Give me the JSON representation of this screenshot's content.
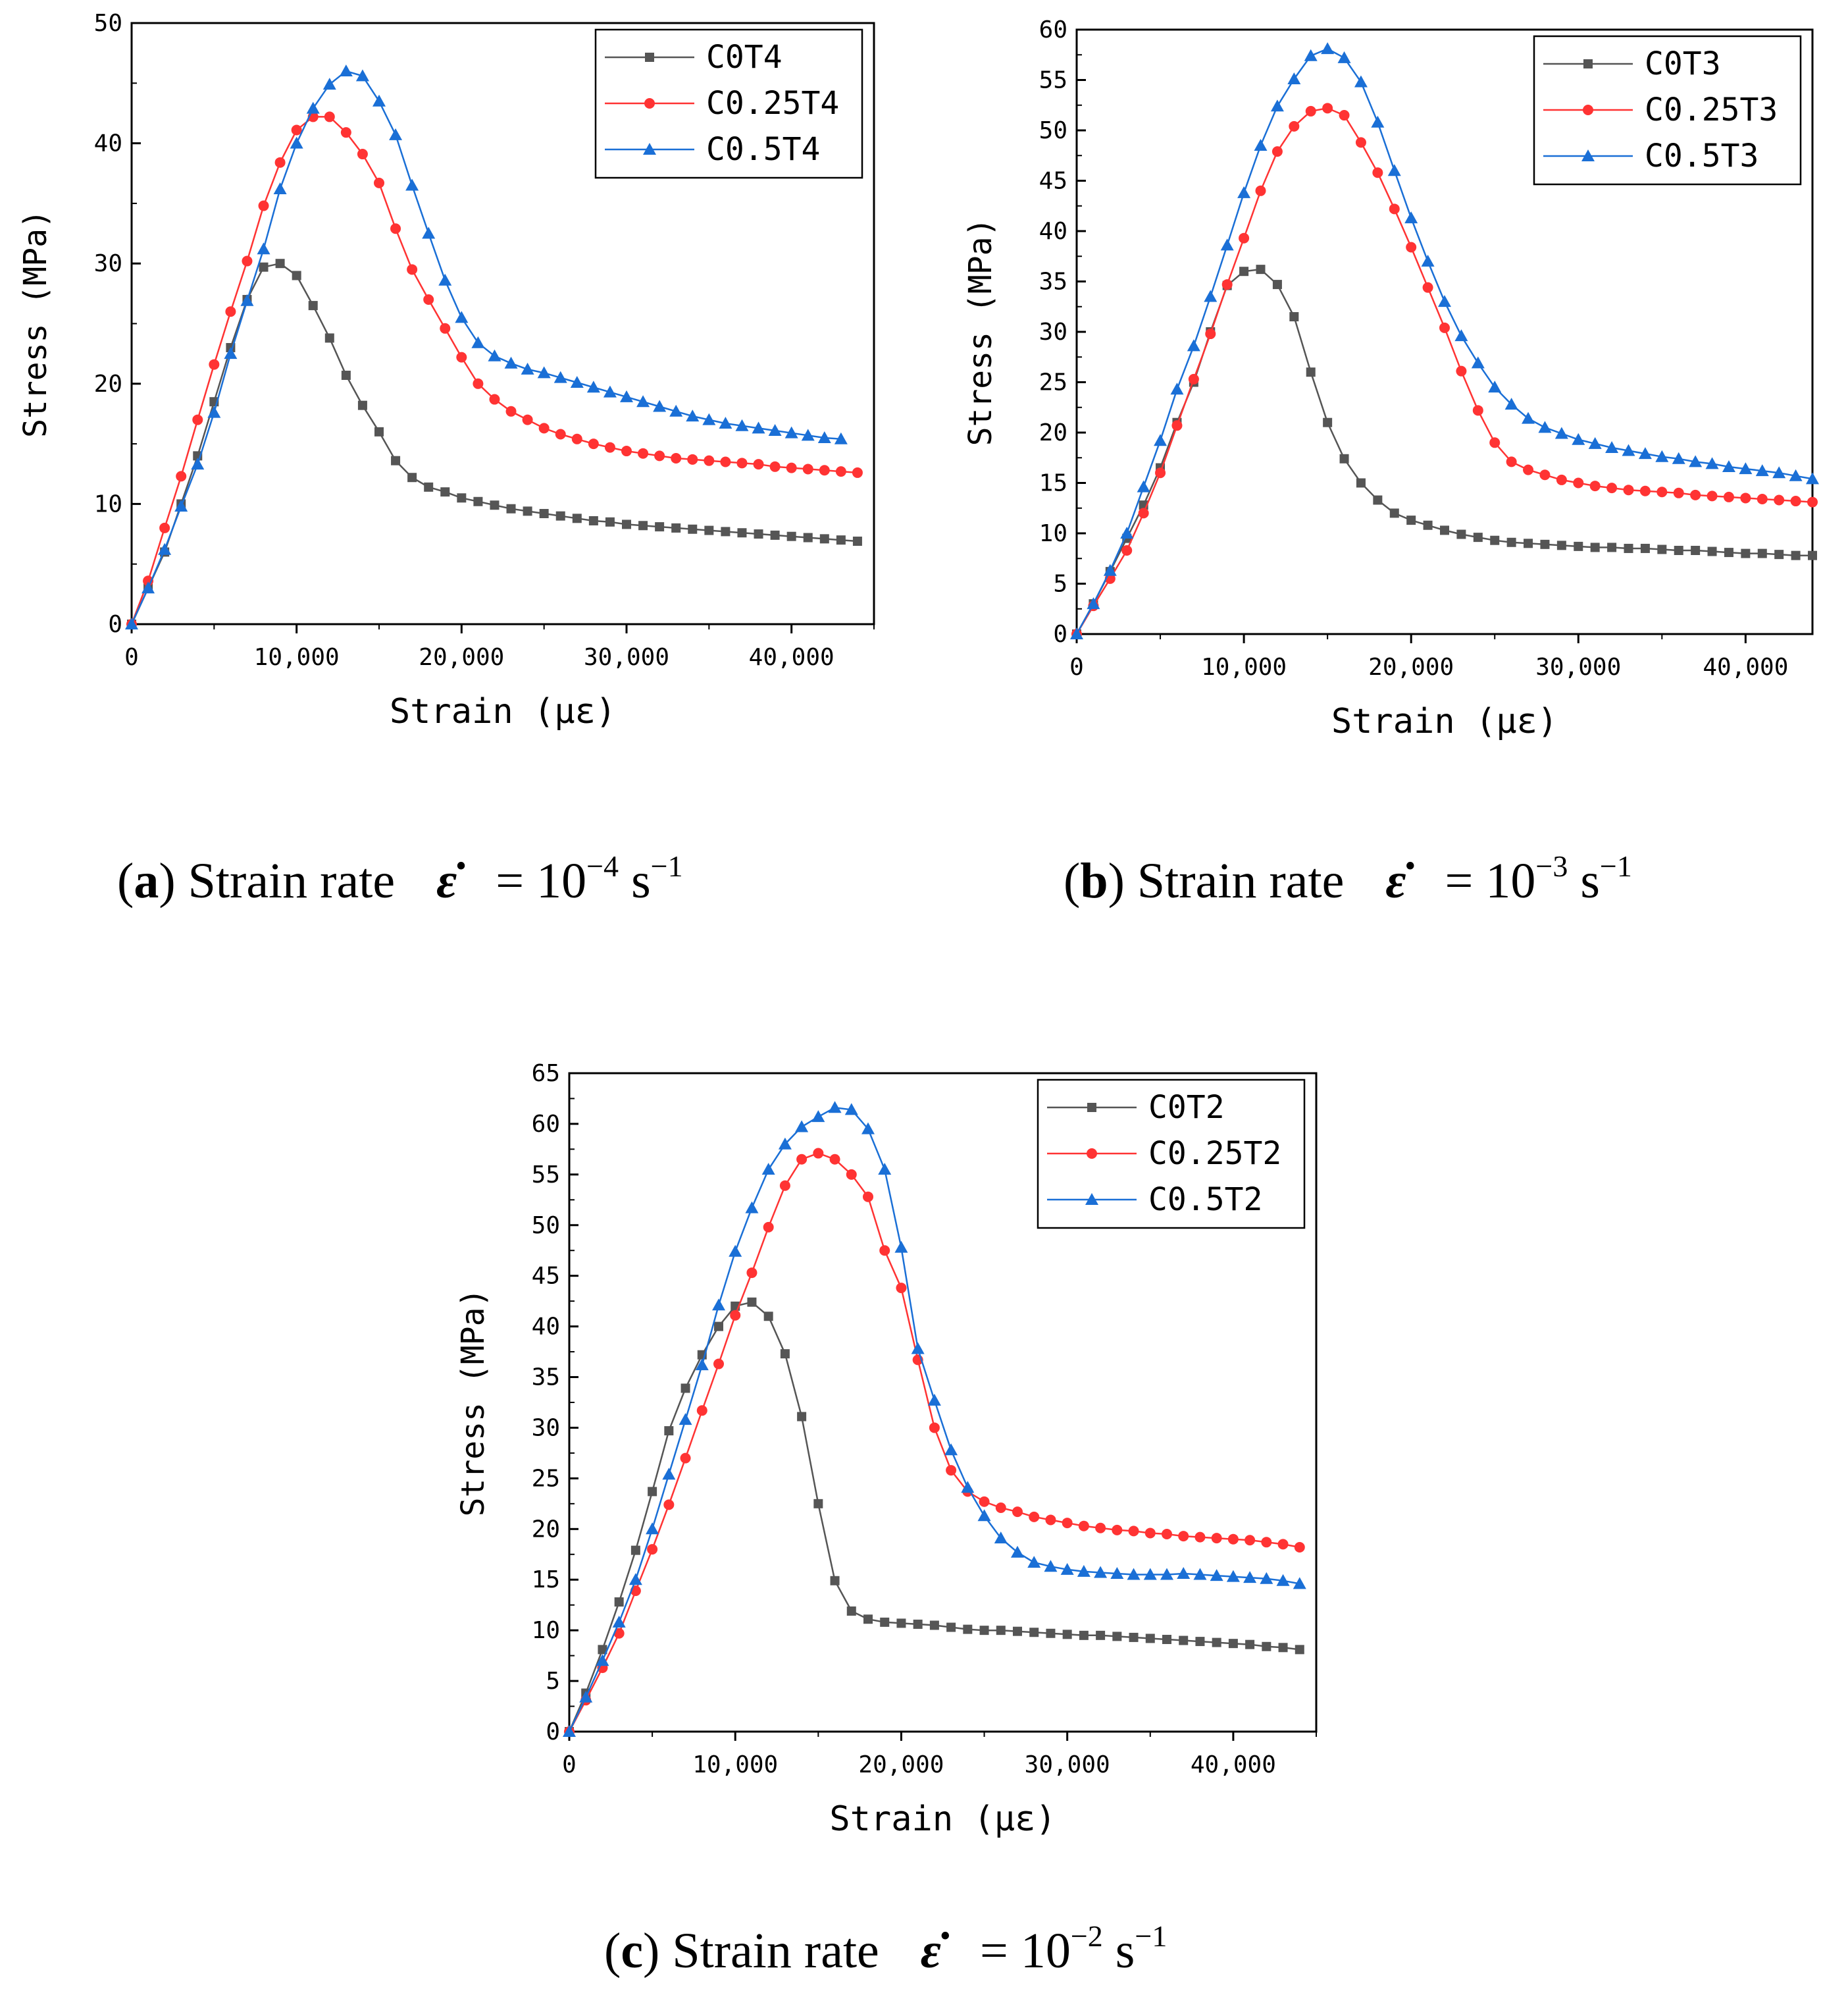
{
  "chart_data": [
    {
      "type": "line",
      "panel_label": "a",
      "caption": {
        "label": "a",
        "text": "Strain rate",
        "symbol": "ε̇",
        "eq": "= 10",
        "exp1": "−4",
        "unit": " s",
        "exp2": "−1"
      },
      "xlabel": "Strain (με)",
      "ylabel": "Stress (MPa)",
      "xlim": [
        0,
        45000
      ],
      "ylim": [
        0,
        50
      ],
      "xticks": [
        0,
        10000,
        20000,
        30000,
        40000
      ],
      "xtick_labels": [
        "0",
        "10,000",
        "20,000",
        "30,000",
        "40,000"
      ],
      "yticks": [
        0,
        10,
        20,
        30,
        40,
        50
      ],
      "ytick_labels": [
        "0",
        "10",
        "20",
        "30",
        "40",
        "50"
      ],
      "legend_position": "top-right",
      "series": [
        {
          "name": "C0T4",
          "color": "#555555",
          "marker": "square",
          "x": [
            0,
            1000,
            2000,
            3000,
            4000,
            5000,
            6000,
            7000,
            8000,
            9000,
            10000,
            11000,
            12000,
            13000,
            14000,
            15000,
            16000,
            17000,
            18000,
            19000,
            20000,
            21000,
            22000,
            23000,
            24000,
            25000,
            26000,
            27000,
            28000,
            29000,
            30000,
            31000,
            32000,
            33000,
            34000,
            35000,
            36000,
            37000,
            38000,
            39000,
            40000,
            41000,
            42000,
            43000,
            44000
          ],
          "y": [
            0,
            3.0,
            6.0,
            10.0,
            14.0,
            18.5,
            23,
            27,
            29.7,
            30.0,
            29.0,
            26.5,
            23.8,
            20.7,
            18.2,
            16.0,
            13.6,
            12.2,
            11.4,
            11.0,
            10.5,
            10.2,
            9.9,
            9.6,
            9.4,
            9.2,
            9.0,
            8.8,
            8.6,
            8.5,
            8.3,
            8.2,
            8.1,
            8.0,
            7.9,
            7.8,
            7.7,
            7.6,
            7.5,
            7.4,
            7.3,
            7.2,
            7.1,
            7.0,
            6.9
          ]
        },
        {
          "name": "C0.25T4",
          "color": "#ff3333",
          "marker": "circle",
          "x": [
            0,
            1000,
            2000,
            3000,
            4000,
            5000,
            6000,
            7000,
            8000,
            9000,
            10000,
            11000,
            12000,
            13000,
            14000,
            15000,
            16000,
            17000,
            18000,
            19000,
            20000,
            21000,
            22000,
            23000,
            24000,
            25000,
            26000,
            27000,
            28000,
            29000,
            30000,
            31000,
            32000,
            33000,
            34000,
            35000,
            36000,
            37000,
            38000,
            39000,
            40000,
            41000,
            42000,
            43000,
            44000
          ],
          "y": [
            0,
            3.6,
            8.0,
            12.3,
            17.0,
            21.6,
            26.0,
            30.2,
            34.8,
            38.4,
            41.1,
            42.2,
            42.2,
            40.9,
            39.1,
            36.7,
            32.9,
            29.5,
            27.0,
            24.6,
            22.2,
            20.0,
            18.7,
            17.7,
            17.0,
            16.3,
            15.8,
            15.4,
            15.0,
            14.7,
            14.4,
            14.2,
            14.0,
            13.8,
            13.7,
            13.6,
            13.5,
            13.4,
            13.3,
            13.1,
            13.0,
            12.9,
            12.8,
            12.7,
            12.6
          ]
        },
        {
          "name": "C0.5T4",
          "color": "#1a6fd6",
          "marker": "triangle",
          "x": [
            0,
            1000,
            2000,
            3000,
            4000,
            5000,
            6000,
            7000,
            8000,
            9000,
            10000,
            11000,
            12000,
            13000,
            14000,
            15000,
            16000,
            17000,
            18000,
            19000,
            20000,
            21000,
            22000,
            23000,
            24000,
            25000,
            26000,
            27000,
            28000,
            29000,
            30000,
            31000,
            32000,
            33000,
            34000,
            35000,
            36000,
            37000,
            38000,
            39000,
            40000,
            41000,
            42000,
            43000
          ],
          "y": [
            0,
            3.0,
            6.2,
            9.8,
            13.3,
            17.6,
            22.5,
            26.9,
            31.2,
            36.2,
            40.0,
            42.9,
            44.9,
            46.0,
            45.6,
            43.5,
            40.7,
            36.5,
            32.5,
            28.6,
            25.5,
            23.4,
            22.3,
            21.7,
            21.2,
            20.9,
            20.5,
            20.1,
            19.7,
            19.3,
            18.9,
            18.5,
            18.1,
            17.7,
            17.3,
            17.0,
            16.7,
            16.5,
            16.3,
            16.1,
            15.9,
            15.7,
            15.5,
            15.4
          ]
        }
      ]
    },
    {
      "type": "line",
      "panel_label": "b",
      "caption": {
        "label": "b",
        "text": "Strain rate",
        "symbol": "ε̇",
        "eq": "= 10",
        "exp1": "−3",
        "unit": " s",
        "exp2": "−1"
      },
      "xlabel": "Strain (με)",
      "ylabel": "Stress (MPa)",
      "xlim": [
        0,
        44000
      ],
      "ylim": [
        0,
        60
      ],
      "xticks": [
        0,
        10000,
        20000,
        30000,
        40000
      ],
      "xtick_labels": [
        "0",
        "10,000",
        "20,000",
        "30,000",
        "40,000"
      ],
      "yticks": [
        0,
        5,
        10,
        15,
        20,
        25,
        30,
        35,
        40,
        45,
        50,
        55,
        60
      ],
      "ytick_labels": [
        "0",
        "5",
        "10",
        "15",
        "20",
        "25",
        "30",
        "35",
        "40",
        "45",
        "50",
        "55",
        "60"
      ],
      "legend_position": "top-right",
      "series": [
        {
          "name": "C0T3",
          "color": "#555555",
          "marker": "square",
          "x": [
            0,
            1000,
            2000,
            3000,
            4000,
            5000,
            6000,
            7000,
            8000,
            9000,
            10000,
            11000,
            12000,
            13000,
            14000,
            15000,
            16000,
            17000,
            18000,
            19000,
            20000,
            21000,
            22000,
            23000,
            24000,
            25000,
            26000,
            27000,
            28000,
            29000,
            30000,
            31000,
            32000,
            33000,
            34000,
            35000,
            36000,
            37000,
            38000,
            39000,
            40000,
            41000,
            42000,
            43000,
            44000
          ],
          "y": [
            0,
            3.0,
            6.2,
            9.5,
            12.8,
            16.5,
            21.0,
            25.0,
            30.0,
            34.6,
            36.0,
            36.2,
            34.7,
            31.5,
            26.0,
            21.0,
            17.4,
            15.0,
            13.3,
            12.0,
            11.3,
            10.8,
            10.3,
            9.9,
            9.6,
            9.3,
            9.1,
            9.0,
            8.9,
            8.8,
            8.7,
            8.6,
            8.6,
            8.5,
            8.5,
            8.4,
            8.3,
            8.3,
            8.2,
            8.1,
            8.0,
            8.0,
            7.9,
            7.8,
            7.8
          ]
        },
        {
          "name": "C0.25T3",
          "color": "#ff3333",
          "marker": "circle",
          "x": [
            0,
            1000,
            2000,
            3000,
            4000,
            5000,
            6000,
            7000,
            8000,
            9000,
            10000,
            11000,
            12000,
            13000,
            14000,
            15000,
            16000,
            17000,
            18000,
            19000,
            20000,
            21000,
            22000,
            23000,
            24000,
            25000,
            26000,
            27000,
            28000,
            29000,
            30000,
            31000,
            32000,
            33000,
            34000,
            35000,
            36000,
            37000,
            38000,
            39000,
            40000,
            41000,
            42000,
            43000,
            44000
          ],
          "y": [
            0,
            2.8,
            5.5,
            8.3,
            12.0,
            16.0,
            20.7,
            25.3,
            29.8,
            34.7,
            39.3,
            44.0,
            47.9,
            50.4,
            51.9,
            52.2,
            51.5,
            48.8,
            45.8,
            42.2,
            38.4,
            34.4,
            30.4,
            26.1,
            22.2,
            19.0,
            17.1,
            16.3,
            15.8,
            15.3,
            15.0,
            14.7,
            14.5,
            14.3,
            14.2,
            14.1,
            14.0,
            13.8,
            13.7,
            13.6,
            13.5,
            13.4,
            13.3,
            13.2,
            13.1
          ]
        },
        {
          "name": "C0.5T3",
          "color": "#1a6fd6",
          "marker": "triangle",
          "x": [
            0,
            1000,
            2000,
            3000,
            4000,
            5000,
            6000,
            7000,
            8000,
            9000,
            10000,
            11000,
            12000,
            13000,
            14000,
            15000,
            16000,
            17000,
            18000,
            19000,
            20000,
            21000,
            22000,
            23000,
            24000,
            25000,
            26000,
            27000,
            28000,
            29000,
            30000,
            31000,
            32000,
            33000,
            34000,
            35000,
            36000,
            37000,
            38000,
            39000,
            40000,
            41000,
            42000,
            43000,
            44000
          ],
          "y": [
            0,
            3.0,
            6.3,
            10.0,
            14.6,
            19.2,
            24.3,
            28.6,
            33.5,
            38.6,
            43.8,
            48.5,
            52.4,
            55.1,
            57.4,
            58.1,
            57.2,
            54.8,
            50.8,
            46.0,
            41.3,
            37.0,
            33.0,
            29.6,
            26.9,
            24.5,
            22.8,
            21.4,
            20.5,
            19.9,
            19.3,
            18.9,
            18.5,
            18.2,
            17.9,
            17.6,
            17.4,
            17.1,
            16.9,
            16.6,
            16.4,
            16.2,
            16.0,
            15.7,
            15.4
          ]
        }
      ]
    },
    {
      "type": "line",
      "panel_label": "c",
      "caption": {
        "label": "c",
        "text": "Strain rate",
        "symbol": "ε̇",
        "eq": "= 10",
        "exp1": "−2",
        "unit": " s",
        "exp2": "−1"
      },
      "xlabel": "Strain (με)",
      "ylabel": "Stress (MPa)",
      "xlim": [
        0,
        45000
      ],
      "ylim": [
        0,
        65
      ],
      "xticks": [
        0,
        10000,
        20000,
        30000,
        40000
      ],
      "xtick_labels": [
        "0",
        "10,000",
        "20,000",
        "30,000",
        "40,000"
      ],
      "yticks": [
        0,
        5,
        10,
        15,
        20,
        25,
        30,
        35,
        40,
        45,
        50,
        55,
        60,
        65
      ],
      "ytick_labels": [
        "0",
        "5",
        "10",
        "15",
        "20",
        "25",
        "30",
        "35",
        "40",
        "45",
        "50",
        "55",
        "60",
        "65"
      ],
      "legend_position": "top-right",
      "series": [
        {
          "name": "C0T2",
          "color": "#555555",
          "marker": "square",
          "x": [
            0,
            1000,
            2000,
            3000,
            4000,
            5000,
            6000,
            7000,
            8000,
            9000,
            10000,
            11000,
            12000,
            13000,
            14000,
            15000,
            16000,
            17000,
            18000,
            19000,
            20000,
            21000,
            22000,
            23000,
            24000,
            25000,
            26000,
            27000,
            28000,
            29000,
            30000,
            31000,
            32000,
            33000,
            34000,
            35000,
            36000,
            37000,
            38000,
            39000,
            40000,
            41000,
            42000,
            43000,
            44000
          ],
          "y": [
            0,
            3.8,
            8.1,
            12.8,
            17.9,
            23.7,
            29.7,
            33.9,
            37.2,
            40.0,
            42.0,
            42.4,
            41.0,
            37.3,
            31.1,
            22.5,
            14.9,
            11.9,
            11.1,
            10.8,
            10.7,
            10.6,
            10.5,
            10.3,
            10.1,
            10.0,
            10.0,
            9.9,
            9.8,
            9.7,
            9.6,
            9.5,
            9.5,
            9.4,
            9.3,
            9.2,
            9.1,
            9.0,
            8.9,
            8.8,
            8.7,
            8.6,
            8.4,
            8.3,
            8.1
          ]
        },
        {
          "name": "C0.25T2",
          "color": "#ff3333",
          "marker": "circle",
          "x": [
            0,
            1000,
            2000,
            3000,
            4000,
            5000,
            6000,
            7000,
            8000,
            9000,
            10000,
            11000,
            12000,
            13000,
            14000,
            15000,
            16000,
            17000,
            18000,
            19000,
            20000,
            21000,
            22000,
            23000,
            24000,
            25000,
            26000,
            27000,
            28000,
            29000,
            30000,
            31000,
            32000,
            33000,
            34000,
            35000,
            36000,
            37000,
            38000,
            39000,
            40000,
            41000,
            42000,
            43000,
            44000
          ],
          "y": [
            0,
            3.1,
            6.3,
            9.7,
            13.9,
            18.0,
            22.4,
            27.0,
            31.7,
            36.3,
            41.1,
            45.3,
            49.8,
            53.9,
            56.5,
            57.1,
            56.5,
            55.0,
            52.8,
            47.5,
            43.8,
            36.7,
            30.0,
            25.8,
            23.7,
            22.7,
            22.1,
            21.7,
            21.2,
            20.9,
            20.6,
            20.3,
            20.1,
            19.9,
            19.8,
            19.6,
            19.5,
            19.3,
            19.2,
            19.1,
            19.0,
            18.9,
            18.7,
            18.5,
            18.2
          ]
        },
        {
          "name": "C0.5T2",
          "color": "#1a6fd6",
          "marker": "triangle",
          "x": [
            0,
            1000,
            2000,
            3000,
            4000,
            5000,
            6000,
            7000,
            8000,
            9000,
            10000,
            11000,
            12000,
            13000,
            14000,
            15000,
            16000,
            17000,
            18000,
            19000,
            20000,
            21000,
            22000,
            23000,
            24000,
            25000,
            26000,
            27000,
            28000,
            29000,
            30000,
            31000,
            32000,
            33000,
            34000,
            35000,
            36000,
            37000,
            38000,
            39000,
            40000,
            41000,
            42000,
            43000,
            44000
          ],
          "y": [
            0,
            3.4,
            7.0,
            10.8,
            15.0,
            20.0,
            25.4,
            30.8,
            36.2,
            42.1,
            47.4,
            51.7,
            55.5,
            58.0,
            59.7,
            60.7,
            61.6,
            61.4,
            59.5,
            55.5,
            47.8,
            37.8,
            32.7,
            27.8,
            24.1,
            21.3,
            19.1,
            17.7,
            16.7,
            16.3,
            16.0,
            15.8,
            15.7,
            15.6,
            15.5,
            15.5,
            15.5,
            15.6,
            15.5,
            15.4,
            15.3,
            15.2,
            15.1,
            14.9,
            14.6
          ]
        }
      ]
    }
  ]
}
